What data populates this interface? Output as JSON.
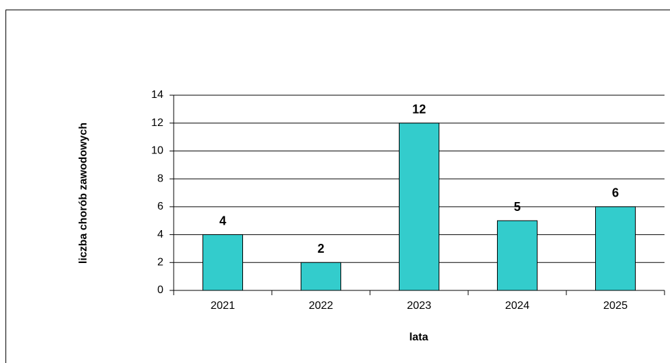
{
  "chart_data": {
    "type": "bar",
    "x_label": "lata",
    "y_label": "liczba chorób zawodowych",
    "categories": [
      "2021",
      "2022",
      "2023",
      "2024",
      "2025"
    ],
    "values": [
      4,
      2,
      12,
      5,
      6
    ],
    "color": "#33cccc",
    "ylim": [
      0,
      14
    ],
    "yticks": [
      0,
      2,
      4,
      6,
      8,
      10,
      12,
      14
    ],
    "grid": true
  }
}
